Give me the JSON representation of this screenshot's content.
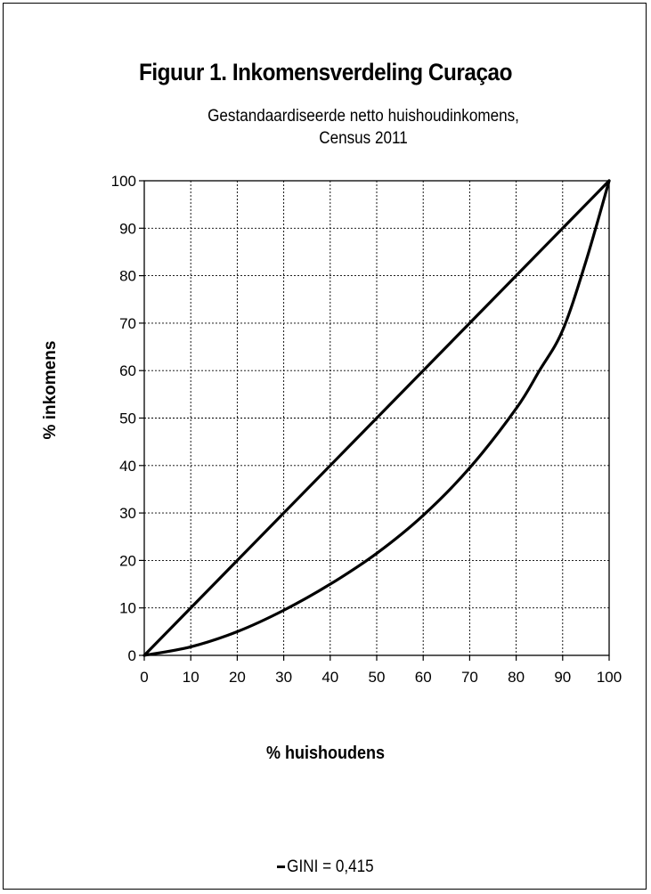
{
  "chart_data": {
    "type": "line",
    "title": "Figuur 1. Inkomensverdeling Curaçao",
    "subtitle_lines": [
      "Gestandaardiseerde netto huishoudinkomens,",
      "Census 2011"
    ],
    "xlabel": "% huishoudens",
    "ylabel": "% inkomens",
    "xlim": [
      0,
      100
    ],
    "ylim": [
      0,
      100
    ],
    "x_ticks": [
      "0",
      "10",
      "20",
      "30",
      "40",
      "50",
      "60",
      "70",
      "80",
      "90",
      "100"
    ],
    "y_ticks": [
      "0",
      "10",
      "20",
      "30",
      "40",
      "50",
      "60",
      "70",
      "80",
      "90",
      "100"
    ],
    "grid": true,
    "legend_position": "bottom",
    "legend_label": "GINI = 0,415",
    "series": [
      {
        "x": [
          0,
          100
        ],
        "y": [
          0,
          100
        ]
      },
      {
        "name": "GINI = 0,415",
        "x": [
          0,
          10,
          20,
          30,
          40,
          50,
          60,
          70,
          80,
          85,
          90,
          95,
          100
        ],
        "y": [
          0,
          1.8,
          5,
          9.5,
          15,
          21.5,
          29.5,
          39.5,
          52,
          60,
          68.5,
          83,
          100
        ]
      }
    ],
    "line_color": "#000000",
    "grid_color": "#000000"
  }
}
